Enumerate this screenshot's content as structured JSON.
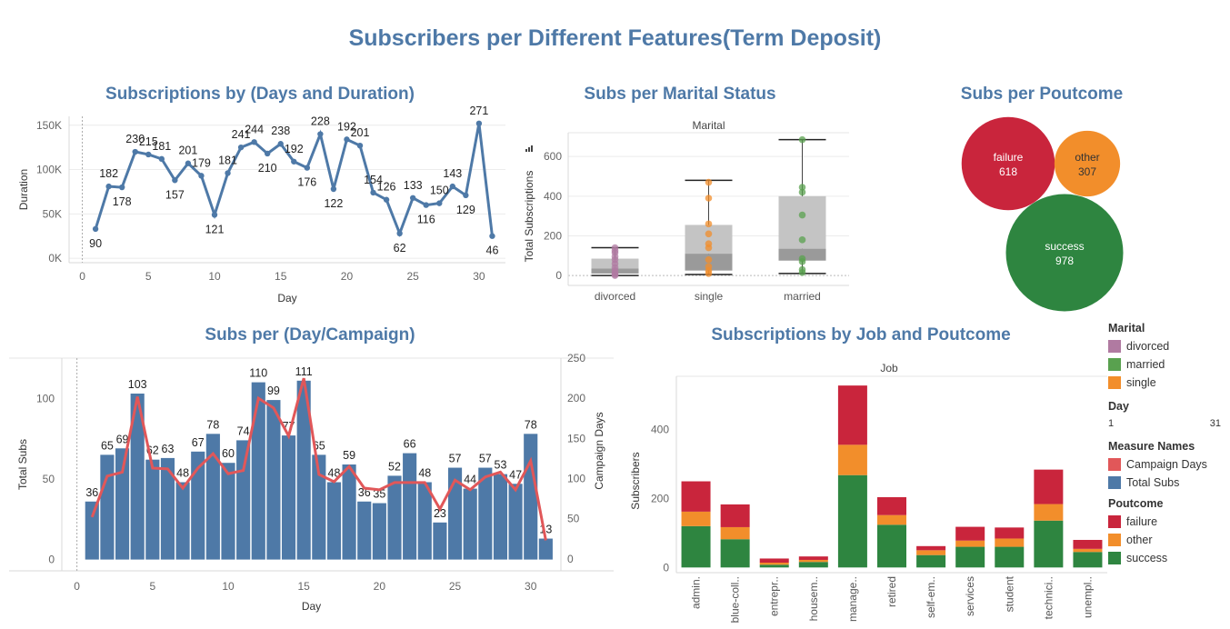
{
  "dashboard_title": "Subscribers per Different Features(Term Deposit)",
  "colors": {
    "accent": "#4e79a7",
    "line_red": "#e15759",
    "failure": "#c9253c",
    "other": "#f28e2b",
    "success": "#2e8540",
    "divorced": "#b07aa1",
    "married": "#59a14f",
    "single": "#f28e2b"
  },
  "sheets": {
    "days_duration": {
      "title": "Subscriptions by (Days and Duration)"
    },
    "marital": {
      "title": "Subs per Marital Status"
    },
    "poutcome": {
      "title": "Subs per Poutcome"
    },
    "day_campaign": {
      "title": "Subs per (Day/Campaign)"
    },
    "job": {
      "title": "Subscriptions by Job and Poutcome"
    }
  },
  "legend": {
    "marital_title": "Marital",
    "marital": [
      {
        "label": "divorced",
        "color": "#b07aa1"
      },
      {
        "label": "married",
        "color": "#59a14f"
      },
      {
        "label": "single",
        "color": "#f28e2b"
      }
    ],
    "day_title": "Day",
    "day_min": "1",
    "day_max": "31",
    "measures_title": "Measure Names",
    "measures": [
      {
        "label": "Campaign Days",
        "color": "#e15759"
      },
      {
        "label": "Total Subs",
        "color": "#4e79a7"
      }
    ],
    "poutcome_title": "Poutcome",
    "poutcome": [
      {
        "label": "failure",
        "color": "#c9253c"
      },
      {
        "label": "other",
        "color": "#f28e2b"
      },
      {
        "label": "success",
        "color": "#2e8540"
      }
    ]
  },
  "chart_data": [
    {
      "id": "days_duration",
      "type": "line",
      "title": "Subscriptions by (Days and Duration)",
      "xlabel": "Day",
      "ylabel": "Duration",
      "xlim": [
        -1,
        32
      ],
      "ylim": [
        -5000,
        160000
      ],
      "xticks": [
        0,
        5,
        10,
        15,
        20,
        25,
        30
      ],
      "yticks": [
        0,
        50000,
        100000,
        150000
      ],
      "ytick_labels": [
        "0K",
        "50K",
        "100K",
        "150K"
      ],
      "x": [
        1,
        2,
        3,
        4,
        5,
        6,
        7,
        8,
        9,
        10,
        11,
        12,
        13,
        14,
        15,
        16,
        17,
        18,
        19,
        20,
        21,
        22,
        23,
        24,
        25,
        26,
        27,
        28,
        29,
        30,
        31
      ],
      "values": [
        33000,
        81000,
        80000,
        120000,
        117000,
        112000,
        88000,
        107000,
        93000,
        49000,
        96000,
        125000,
        131000,
        118000,
        129000,
        109000,
        102000,
        140000,
        78000,
        134000,
        127000,
        74000,
        66000,
        28000,
        68000,
        60000,
        62000,
        81000,
        71000,
        152000,
        25000
      ],
      "labels": [
        "90",
        "182",
        "178",
        "230",
        "215",
        "181",
        "157",
        "201",
        "179",
        "121",
        "181",
        "241",
        "244",
        "210",
        "238",
        "192",
        "176",
        "228",
        "122",
        "192",
        "201",
        "154",
        "126",
        "62",
        "133",
        "116",
        "150",
        "143",
        "129",
        "271",
        "46"
      ]
    },
    {
      "id": "marital",
      "type": "box",
      "title": "Subs per Marital Status",
      "header": "Marital",
      "ylabel": "Total Subscriptions",
      "categories": [
        "divorced",
        "single",
        "married"
      ],
      "ylim": [
        -50,
        720
      ],
      "yticks": [
        0,
        200,
        400,
        600
      ],
      "boxes": [
        {
          "whisker_low": 0,
          "q1": 10,
          "median": 35,
          "q3": 85,
          "whisker_high": 140,
          "points": [
            0,
            5,
            12,
            25,
            40,
            60,
            80,
            95,
            115,
            125,
            140
          ]
        },
        {
          "whisker_low": 5,
          "q1": 25,
          "median": 110,
          "q3": 255,
          "whisker_high": 480,
          "points": [
            10,
            25,
            45,
            80,
            140,
            160,
            210,
            260,
            390,
            470
          ]
        },
        {
          "whisker_low": 10,
          "q1": 75,
          "median": 135,
          "q3": 400,
          "whisker_high": 685,
          "points": [
            15,
            30,
            70,
            85,
            180,
            305,
            420,
            445,
            685
          ]
        }
      ]
    },
    {
      "id": "poutcome",
      "type": "bubble",
      "title": "Subs per Poutcome",
      "categories": [
        "failure",
        "other",
        "success"
      ],
      "values": [
        618,
        307,
        978
      ]
    },
    {
      "id": "day_campaign",
      "type": "bar",
      "title": "Subs per (Day/Campaign)",
      "xlabel": "Day",
      "ylabel": "Total Subs",
      "y2label": "Campaign Days",
      "xlim": [
        -1,
        32
      ],
      "ylim": [
        -7,
        125
      ],
      "y2lim": [
        -15,
        250
      ],
      "xticks": [
        0,
        5,
        10,
        15,
        20,
        25,
        30
      ],
      "yticks": [
        0,
        50,
        100
      ],
      "y2ticks": [
        0,
        50,
        100,
        150,
        200,
        250
      ],
      "series": [
        {
          "name": "Total Subs",
          "type": "bar",
          "x": [
            1,
            2,
            3,
            4,
            5,
            6,
            7,
            8,
            9,
            10,
            11,
            12,
            13,
            14,
            15,
            16,
            17,
            18,
            19,
            20,
            21,
            22,
            23,
            24,
            25,
            26,
            27,
            28,
            29,
            30,
            31
          ],
          "values": [
            36,
            65,
            69,
            103,
            62,
            63,
            48,
            67,
            78,
            60,
            74,
            110,
            99,
            77,
            111,
            65,
            48,
            59,
            36,
            35,
            52,
            66,
            48,
            23,
            57,
            44,
            57,
            53,
            47,
            78,
            13
          ]
        },
        {
          "name": "Campaign Days",
          "type": "line",
          "x": [
            1,
            2,
            3,
            4,
            5,
            6,
            7,
            8,
            9,
            10,
            11,
            12,
            13,
            14,
            15,
            16,
            17,
            18,
            19,
            20,
            21,
            22,
            23,
            24,
            25,
            26,
            27,
            28,
            29,
            30,
            31
          ],
          "values": [
            52,
            103,
            108,
            202,
            113,
            112,
            88,
            113,
            131,
            106,
            110,
            200,
            188,
            153,
            225,
            105,
            96,
            115,
            88,
            86,
            95,
            95,
            95,
            62,
            98,
            86,
            102,
            108,
            86,
            122,
            23
          ]
        }
      ]
    },
    {
      "id": "job",
      "type": "bar",
      "stacked": true,
      "title": "Subscriptions by Job and Poutcome",
      "header": "Job",
      "ylabel": "Subscribers",
      "ylim": [
        -15,
        560
      ],
      "yticks": [
        0,
        200,
        400
      ],
      "categories": [
        "admin.",
        "blue-coll..",
        "entrepr..",
        "housem..",
        "manage..",
        "retired",
        "self-em..",
        "services",
        "student",
        "technici..",
        "unempl.."
      ],
      "series": [
        {
          "name": "success",
          "values": [
            120,
            82,
            8,
            16,
            268,
            124,
            36,
            60,
            60,
            136,
            45
          ]
        },
        {
          "name": "other",
          "values": [
            42,
            35,
            6,
            6,
            88,
            28,
            14,
            18,
            24,
            48,
            9
          ]
        },
        {
          "name": "failure",
          "values": [
            88,
            66,
            12,
            10,
            172,
            52,
            12,
            40,
            32,
            100,
            26
          ]
        }
      ]
    }
  ]
}
